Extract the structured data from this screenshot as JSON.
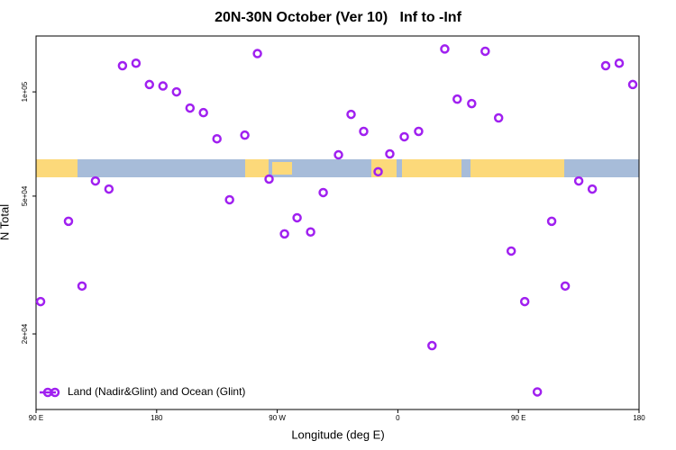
{
  "chart_data": {
    "type": "scatter",
    "title": "20N-30N October (Ver 10)   Inf to -Inf",
    "x_label": "Longitude (deg E)",
    "y_label": "N Total",
    "ylog": true,
    "color": "#a020f0",
    "legend_position": "bottom-left",
    "xlim": [
      90,
      540
    ],
    "xticks": [
      {
        "value": 90,
        "label": "90 E"
      },
      180,
      {
        "value": 270,
        "label": "90 W"
      },
      {
        "value": 360,
        "label": "0"
      },
      {
        "value": 450,
        "label": "90 E"
      },
      {
        "value": 540,
        "label": "180"
      }
    ],
    "ylim": [
      12100,
      145000
    ],
    "yticks": [
      {
        "value": 20000,
        "label": "2e+04"
      },
      {
        "value": 50000,
        "label": "5e+04"
      },
      {
        "value": 100000,
        "label": "1e+05"
      }
    ],
    "series": [
      {
        "name": "Land (Nadir&Glint) and Ocean (Glint)",
        "color": "#a020f0",
        "x": [
          93.4,
          114.2,
          124.3,
          134.3,
          144.4,
          154.5,
          164.6,
          174.6,
          184.7,
          194.8,
          204.9,
          214.9,
          225.0,
          234.4,
          245.8,
          255.2,
          263.9,
          275.4,
          284.8,
          294.9,
          304.3,
          315.7,
          325.1,
          334.5,
          345.3,
          354.0,
          364.8,
          375.5,
          385.5,
          395.0,
          404.3,
          415.1,
          425.2,
          435.2,
          444.6,
          454.7,
          464.1,
          474.8,
          484.9,
          495.0,
          505.1,
          515.1,
          525.2,
          535.3
        ],
        "values": [
          24800,
          42300,
          27500,
          55300,
          52400,
          119000,
          121000,
          105000,
          104000,
          100000,
          89800,
          87100,
          73200,
          48800,
          75000,
          129000,
          56000,
          38900,
          43300,
          39400,
          51200,
          65800,
          86100,
          76900,
          58800,
          66200,
          74200,
          76900,
          18500,
          133000,
          95300,
          92500,
          131000,
          84100,
          34700,
          24800,
          13600,
          42300,
          27500,
          55300,
          52400,
          119000,
          121000,
          105000
        ]
      }
    ]
  }
}
